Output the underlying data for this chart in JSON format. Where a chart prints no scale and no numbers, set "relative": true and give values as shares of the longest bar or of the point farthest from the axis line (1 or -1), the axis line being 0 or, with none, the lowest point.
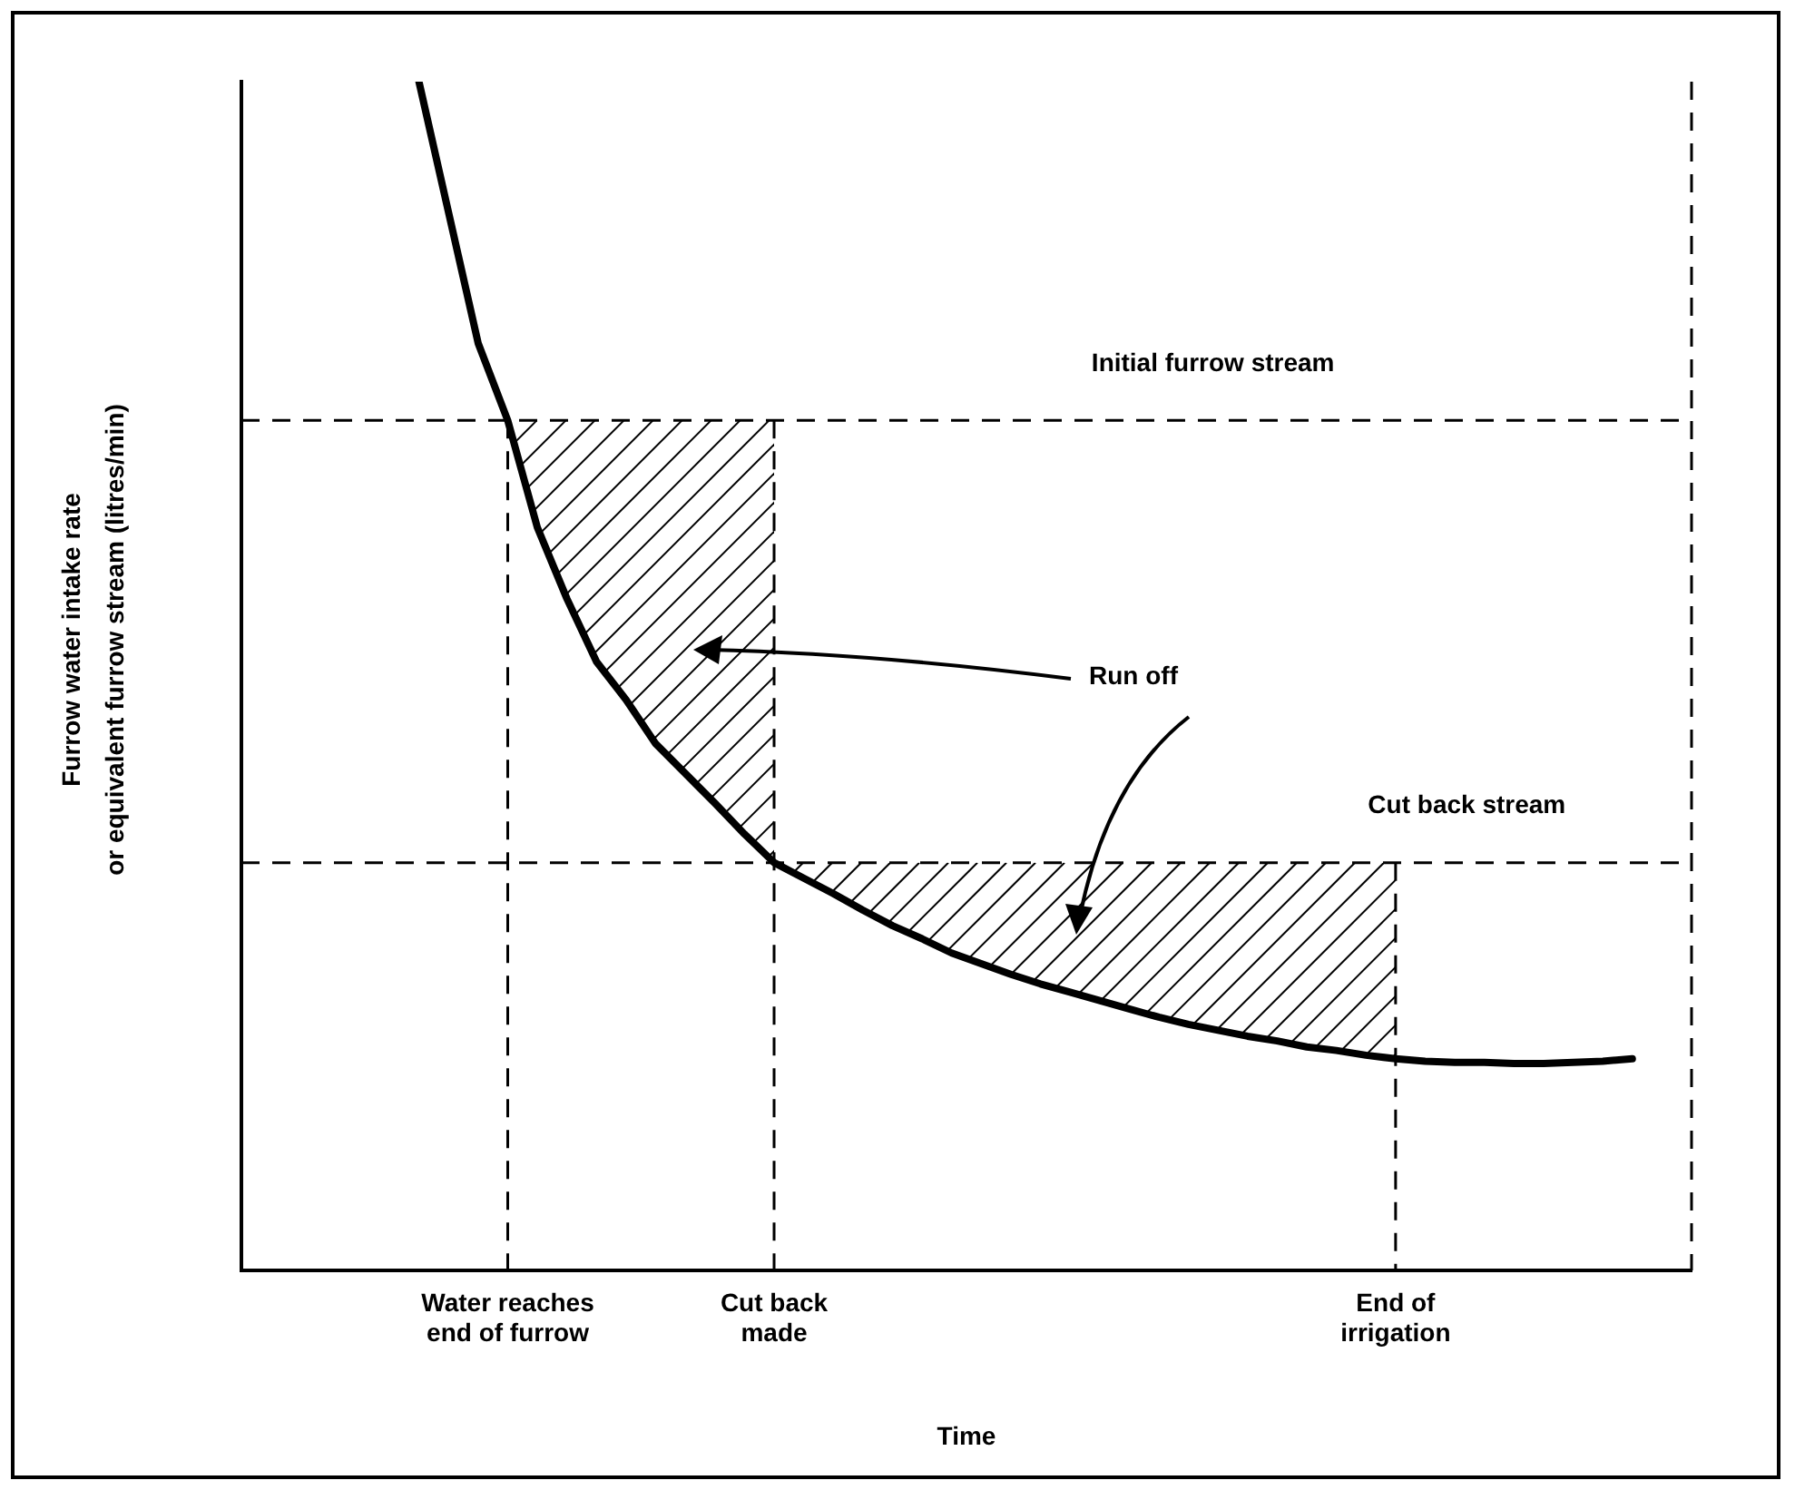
{
  "chart_data": {
    "type": "line",
    "relative": true,
    "xlabel": "Time",
    "ylabel": "Furrow water intake rate\nor equivalent furrow stream (litres/min)",
    "tick_labels": "x",
    "marker": "none",
    "line_style": "solid",
    "categories": [
      null,
      null,
      null,
      null,
      null,
      null,
      null,
      null,
      null,
      "Water reaches\nend of furrow",
      null,
      null,
      null,
      null,
      null,
      null,
      null,
      null,
      "Cut back\nmade",
      null,
      null,
      null,
      null,
      null,
      null,
      null,
      null,
      null,
      null,
      null,
      null,
      null,
      null,
      null,
      null,
      null,
      null,
      null,
      null,
      "End of\nirrigation",
      null,
      null,
      null,
      null,
      null,
      null,
      null,
      null,
      null,
      null
    ],
    "series": [
      {
        "color": "#000000",
        "values": [
          null,
          null,
          null,
          null,
          null,
          null,
          1.0,
          0.89,
          0.78,
          0.715,
          0.625,
          0.565,
          0.512,
          0.48,
          0.443,
          0.418,
          0.393,
          0.367,
          0.343,
          0.33,
          0.317,
          0.303,
          0.29,
          0.279,
          0.267,
          0.258,
          0.249,
          0.241,
          0.234,
          0.227,
          0.22,
          0.213,
          0.207,
          0.202,
          0.197,
          0.193,
          0.188,
          0.185,
          0.181,
          0.178,
          0.176,
          0.175,
          0.175,
          0.174,
          0.174,
          0.175,
          0.176,
          0.178,
          null,
          null
        ]
      }
    ],
    "ref_lines": [
      {
        "axis": "y",
        "value": 0.715,
        "label": "Initial furrow stream",
        "line_style": "dashed"
      },
      {
        "axis": "y",
        "value": 0.343,
        "label": "Cut back stream",
        "line_style": "dashed"
      },
      {
        "axis": "x",
        "value": "Water reaches\nend of furrow",
        "line_style": "dashed"
      },
      {
        "axis": "x",
        "value": "Cut back\nmade",
        "line_style": "dashed"
      },
      {
        "axis": "x",
        "value": "End of\nirrigation",
        "line_style": "dashed"
      }
    ],
    "annotations": [
      "Run off"
    ]
  }
}
